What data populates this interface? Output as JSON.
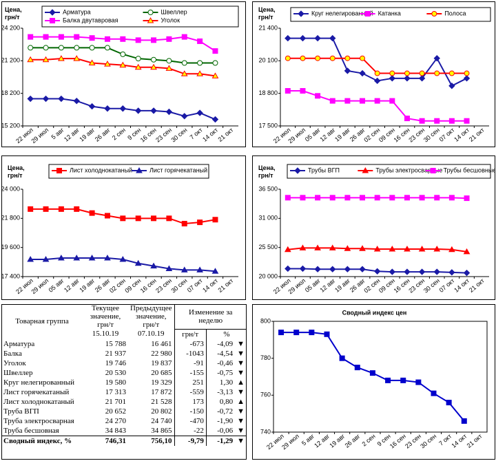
{
  "chart_data": [
    {
      "type": "line",
      "ylabel": "Цена, грн/т",
      "ylim": [
        15200,
        24200
      ],
      "yticks": [
        {
          "value": 15200,
          "label": "15 200"
        },
        {
          "value": 18200,
          "label": "18 200"
        },
        {
          "value": 21200,
          "label": "21 200"
        },
        {
          "value": 24200,
          "label": "24 200"
        }
      ],
      "categories": [
        "22 июл",
        "29 июл",
        "5 авг",
        "12 авг",
        "19 авг",
        "26 авг",
        "2 сен",
        "9 сен",
        "16 сен",
        "23 сен",
        "30 сен",
        "7 окт",
        "14 окт",
        "21 окт"
      ],
      "series": [
        {
          "name": "Арматура",
          "color": "#1a1aa6",
          "marker": "diamond",
          "marker_fill": "#1a1aa6",
          "values": [
            17700,
            17700,
            17700,
            17500,
            17000,
            16800,
            16800,
            16600,
            16600,
            16500,
            16100,
            16400,
            15800,
            null
          ]
        },
        {
          "name": "Швеллер",
          "color": "#006600",
          "marker": "circle",
          "marker_fill": "#ffffff",
          "values": [
            22400,
            22400,
            22400,
            22400,
            22400,
            22400,
            21800,
            21400,
            21300,
            21200,
            21000,
            21000,
            21000,
            null
          ]
        },
        {
          "name": "Балка двутавровая",
          "color": "#ff00ff",
          "marker": "square",
          "marker_fill": "#ff00ff",
          "values": [
            23400,
            23400,
            23400,
            23400,
            23300,
            23200,
            23200,
            23100,
            23100,
            23200,
            23400,
            23000,
            22100,
            null
          ]
        },
        {
          "name": "Уголок",
          "color": "#ff0000",
          "marker": "triangle",
          "marker_fill": "#ffff00",
          "values": [
            21300,
            21300,
            21400,
            21400,
            21000,
            20900,
            20800,
            20600,
            20600,
            20500,
            20000,
            20000,
            19800,
            null
          ]
        }
      ]
    },
    {
      "type": "line",
      "ylabel": "Цена, грн/т",
      "ylim": [
        17500,
        21400
      ],
      "yticks": [
        {
          "value": 17500,
          "label": "17 500"
        },
        {
          "value": 18800,
          "label": "18 800"
        },
        {
          "value": 20100,
          "label": "20 100"
        },
        {
          "value": 21400,
          "label": "21 400"
        }
      ],
      "categories": [
        "22 июл",
        "29 июл",
        "05 авг",
        "12 авг",
        "19 авг",
        "26 авг",
        "02 сен",
        "09 сен",
        "16 сен",
        "23 сен",
        "30 сен",
        "07 окт",
        "14 окт",
        "21 окт"
      ],
      "series": [
        {
          "name": "Круг нелегированный",
          "color": "#1a1aa6",
          "marker": "diamond",
          "marker_fill": "#1a1aa6",
          "values": [
            21000,
            21000,
            21000,
            21000,
            19700,
            19600,
            19300,
            19400,
            19400,
            19400,
            20200,
            19100,
            19400,
            null
          ]
        },
        {
          "name": "Катанка",
          "color": "#ff00ff",
          "marker": "square",
          "marker_fill": "#ff00ff",
          "values": [
            18900,
            18900,
            18700,
            18500,
            18500,
            18500,
            18500,
            18500,
            17800,
            17700,
            17700,
            17700,
            17700,
            null
          ]
        },
        {
          "name": "Полоса",
          "color": "#ff0000",
          "marker": "circle",
          "marker_fill": "#ffff00",
          "values": [
            20200,
            20200,
            20200,
            20200,
            20200,
            20200,
            19600,
            19600,
            19600,
            19600,
            19600,
            19600,
            19600,
            null
          ]
        }
      ]
    },
    {
      "type": "line",
      "ylabel": "Цена, грн/т",
      "ylim": [
        17400,
        24000
      ],
      "yticks": [
        {
          "value": 17400,
          "label": "17 400"
        },
        {
          "value": 19600,
          "label": "19 600"
        },
        {
          "value": 21800,
          "label": "21 800"
        },
        {
          "value": 24000,
          "label": "24 000"
        }
      ],
      "categories": [
        "22 июл",
        "29 июл",
        "05 авг",
        "12 авг",
        "19 авг",
        "26 авг",
        "02 сен",
        "09 сен",
        "16 сен",
        "23 сен",
        "30 сен",
        "07 окт",
        "14 окт",
        "21 окт"
      ],
      "series": [
        {
          "name": "Лист холоднокатаный",
          "color": "#ff0000",
          "marker": "square",
          "marker_fill": "#ff0000",
          "values": [
            22500,
            22500,
            22500,
            22500,
            22200,
            22000,
            21800,
            21800,
            21800,
            21800,
            21400,
            21500,
            21700,
            null
          ]
        },
        {
          "name": "Лист горячекатаный",
          "color": "#1a1aa6",
          "marker": "triangle",
          "marker_fill": "#1a1aa6",
          "values": [
            18700,
            18700,
            18800,
            18800,
            18800,
            18800,
            18700,
            18400,
            18200,
            18000,
            17900,
            17900,
            17800,
            null
          ]
        }
      ]
    },
    {
      "type": "line",
      "ylabel": "Цена, грн/т",
      "ylim": [
        20000,
        36500
      ],
      "yticks": [
        {
          "value": 20000,
          "label": "20 000"
        },
        {
          "value": 25500,
          "label": "25 500"
        },
        {
          "value": 31000,
          "label": "31 000"
        },
        {
          "value": 36500,
          "label": "36 500"
        }
      ],
      "categories": [
        "22 июл",
        "29 июл",
        "05 авг",
        "12 авг",
        "19 авг",
        "26 авг",
        "02 сен",
        "09 сен",
        "16 сен",
        "23 сен",
        "30 сен",
        "07 окт",
        "14 окт",
        "21 окт"
      ],
      "series": [
        {
          "name": "Трубы ВГП",
          "color": "#1a1aa6",
          "marker": "diamond",
          "marker_fill": "#1a1aa6",
          "values": [
            21500,
            21500,
            21400,
            21400,
            21400,
            21400,
            21000,
            20900,
            20900,
            20900,
            20900,
            20800,
            20700,
            null
          ]
        },
        {
          "name": "Трубы электросварные",
          "color": "#ff0000",
          "marker": "triangle",
          "marker_fill": "#ff0000",
          "values": [
            25100,
            25400,
            25400,
            25400,
            25300,
            25300,
            25200,
            25200,
            25200,
            25200,
            25200,
            25100,
            24700,
            null
          ]
        },
        {
          "name": "Трубы бесшовные",
          "color": "#ff00ff",
          "marker": "square",
          "marker_fill": "#ff00ff",
          "values": [
            34900,
            34900,
            34900,
            34900,
            34900,
            34900,
            34900,
            34900,
            34900,
            34900,
            34900,
            34900,
            34800,
            null
          ]
        }
      ]
    },
    {
      "type": "line",
      "title": "Сводный индекс цен",
      "ylim": [
        740,
        800
      ],
      "yticks": [
        740,
        760,
        780,
        800
      ],
      "categories": [
        "22 июл",
        "29 июл",
        "5 авг",
        "12 авг",
        "19 авг",
        "26 авг",
        "2 сен",
        "9 сен",
        "16 сен",
        "23 сен",
        "30 сен",
        "7 окт",
        "14 окт",
        "21 окт"
      ],
      "series": [
        {
          "color": "#0000cc",
          "marker": "square",
          "marker_fill": "#0000cc",
          "values": [
            794,
            794,
            794,
            793,
            780,
            775,
            772,
            768,
            768,
            767,
            761,
            756,
            746,
            null
          ]
        }
      ]
    }
  ],
  "table": {
    "headers": {
      "group": "Товарная группа",
      "current": "Текущее значение, грн/т",
      "previous": "Предыдущее значение, грн/т",
      "change": "Изменение за неделю",
      "current_date": "15.10.19",
      "previous_date": "07.10.19",
      "unit": "грн/т",
      "percent": "%"
    },
    "rows": [
      [
        "Арматура",
        "15 788",
        "16 461",
        "-673",
        "-4,09",
        "▼"
      ],
      [
        "Балка",
        "21 937",
        "22 980",
        "-1043",
        "-4,54",
        "▼"
      ],
      [
        "Уголок",
        "19 746",
        "19 837",
        "-91",
        "-0,46",
        "▼"
      ],
      [
        "Швеллер",
        "20 530",
        "20 685",
        "-155",
        "-0,75",
        "▼"
      ],
      [
        "Круг нелегированный",
        "19 580",
        "19 329",
        "251",
        "1,30",
        "▲"
      ],
      [
        "Лист горячекатаный",
        "17 313",
        "17 872",
        "-559",
        "-3,13",
        "▼"
      ],
      [
        "Лист холоднокатаный",
        "21 701",
        "21 528",
        "173",
        "0,80",
        "▲"
      ],
      [
        "Труба ВГП",
        "20 652",
        "20 802",
        "-150",
        "-0,72",
        "▼"
      ],
      [
        "Труба электросварная",
        "24 270",
        "24 740",
        "-470",
        "-1,90",
        "▼"
      ],
      [
        "Труба бесшовная",
        "34 843",
        "34 865",
        "-22",
        "-0,06",
        "▼"
      ],
      [
        "Сводный индекс, %",
        "746,31",
        "756,10",
        "-9,79",
        "-1,29",
        "▼"
      ]
    ]
  }
}
